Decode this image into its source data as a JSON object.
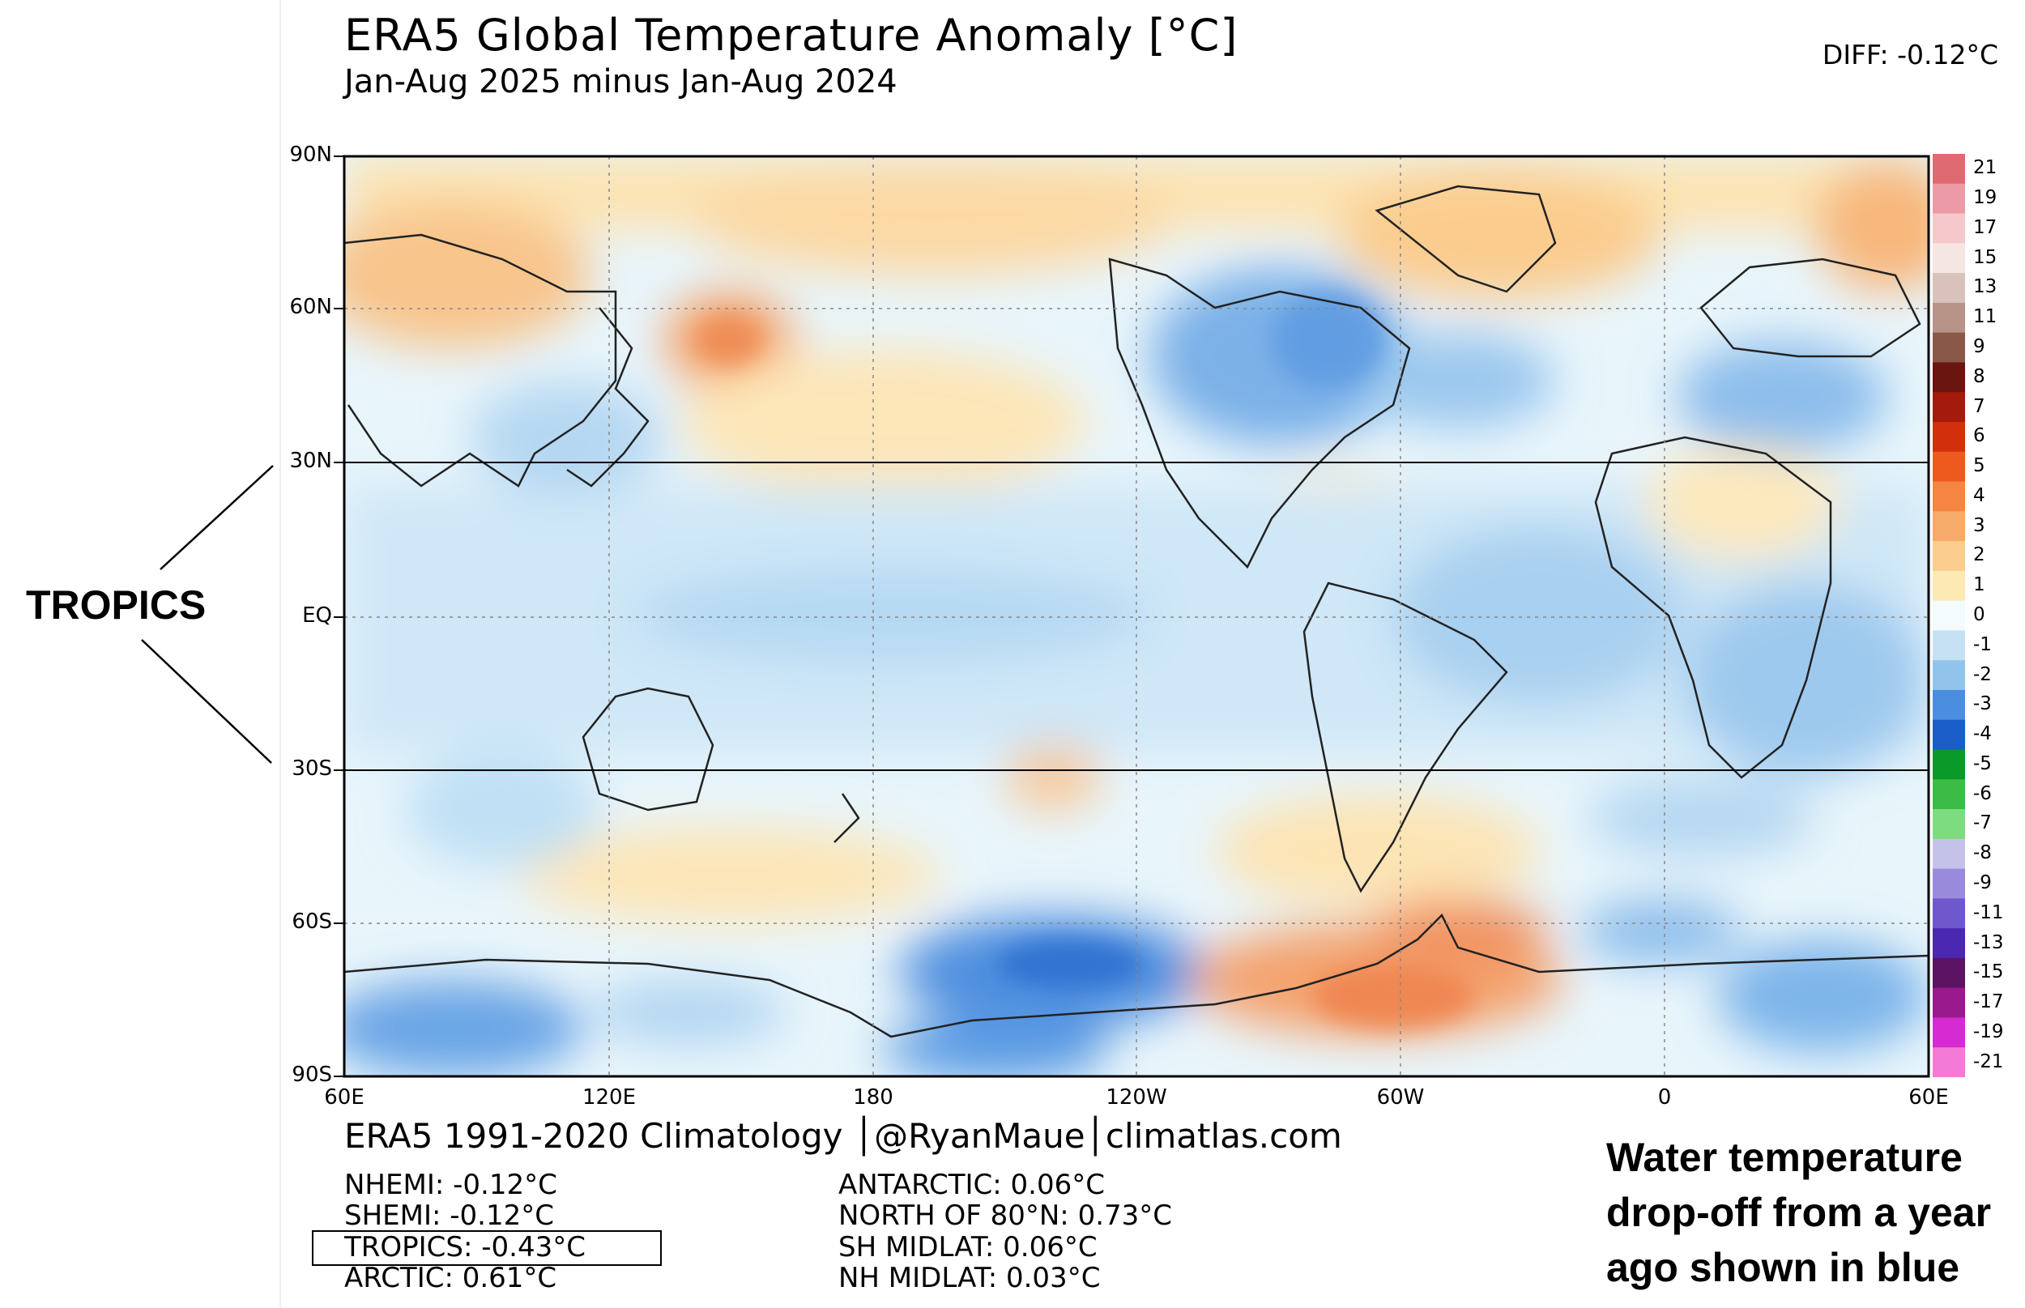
{
  "header": {
    "title": "ERA5 Global Temperature Anomaly [°C]",
    "subtitle": "Jan-Aug 2025 minus Jan-Aug 2024",
    "diff": "DIFF: -0.12°C"
  },
  "map": {
    "lat_labels": [
      "90N",
      "60N",
      "30N",
      "EQ",
      "30S",
      "60S",
      "90S"
    ],
    "lon_labels": [
      "60E",
      "120E",
      "180",
      "120W",
      "60W",
      "0",
      "60E"
    ],
    "projection": "equirectangular, centered on 180",
    "highlighted_band": "30N to 30S"
  },
  "colorbar": {
    "labels": [
      "21",
      "19",
      "17",
      "15",
      "13",
      "11",
      "9",
      "8",
      "7",
      "6",
      "5",
      "4",
      "3",
      "2",
      "1",
      "0",
      "-1",
      "-2",
      "-3",
      "-4",
      "-5",
      "-6",
      "-7",
      "-8",
      "-9",
      "-11",
      "-13",
      "-15",
      "-17",
      "-19",
      "-21"
    ],
    "colors": [
      "#e06a72",
      "#ec9aa6",
      "#f5c8cc",
      "#f6e6e3",
      "#d8c2bb",
      "#b89488",
      "#8a5848",
      "#6a1510",
      "#a41a0c",
      "#d2300c",
      "#ee5a1e",
      "#f48642",
      "#f7ab6a",
      "#fbcd8f",
      "#fde9b3",
      "#f4fbfd",
      "#c6e1f4",
      "#92c3eb",
      "#4b8ee0",
      "#1b5dc9",
      "#0a9a2a",
      "#3cbc46",
      "#7edc80",
      "#c4c2e9",
      "#9a8adc",
      "#6e58cc",
      "#4a28b2",
      "#5c1462",
      "#9a1a8e",
      "#d62ad2",
      "#f47ad8"
    ]
  },
  "side_label": "TROPICS",
  "footer": {
    "credit": "ERA5 1991-2020 Climatology │@RyanMaue│climatlas.com",
    "stats_left": [
      "NHEMI: -0.12°C",
      "SHEMI: -0.12°C",
      "TROPICS: -0.43°C",
      "ARCTIC: 0.61°C"
    ],
    "stats_right": [
      "ANTARCTIC: 0.06°C",
      "NORTH OF 80°N: 0.73°C",
      "SH MIDLAT: 0.06°C",
      "NH MIDLAT: 0.03°C"
    ]
  },
  "note": [
    "Water temperature",
    "drop-off from a year",
    "ago shown in blue"
  ]
}
